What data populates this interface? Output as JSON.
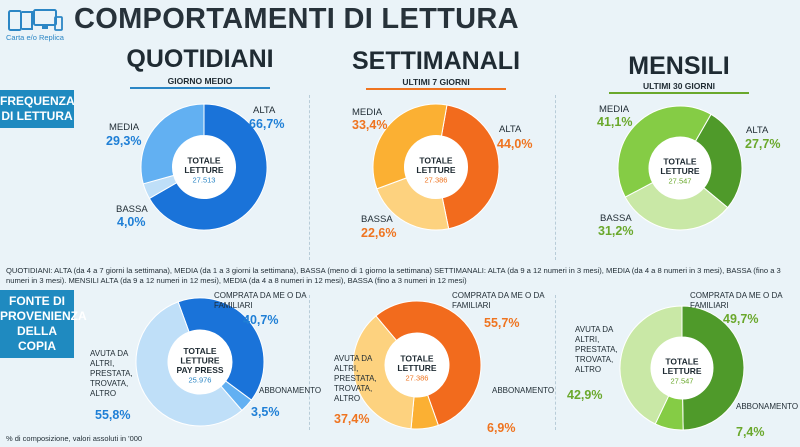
{
  "header": {
    "logo_text": "Carta e/o Replica",
    "title": "COMPORTAMENTI DI LETTURA"
  },
  "columns": [
    {
      "title": "QUOTIDIANI",
      "subtitle": "GIORNO MEDIO"
    },
    {
      "title": "SETTIMANALI",
      "subtitle": "ULTIMI 7 GIORNI"
    },
    {
      "title": "MENSILI",
      "subtitle": "ULTIMI 30 GIORNI"
    }
  ],
  "rows": {
    "frequency": "FREQUENZA DI LETTURA",
    "source": "FONTE DI PROVENIENZA DELLA COPIA"
  },
  "note": "QUOTIDIANI: ALTA (da 4 a 7 giorni la settimana), MEDIA (da 1 a 3 giorni la settimana), BASSA (meno di 1 giorno la settimana)   SETTIMANALI: ALTA (da 9 a 12 numeri in 3 mesi), MEDIA (da 4 a 8 numeri in 3 mesi), BASSA (fino a 3 numeri in 3 mesi). MENSILI ALTA (da 9 a 12 numeri in 12 mesi), MEDIA (da 4 a 8 numeri in 12 mesi), BASSA (fino a 3 numeri in 12 mesi)",
  "footnote": "% di composizione, valori assoluti in '000",
  "colors": {
    "blue_dark": "#1a73d9",
    "blue_mid": "#62b0f2",
    "blue_light": "#bfdff8",
    "orange_dark": "#f26b1d",
    "orange_mid": "#fbb033",
    "orange_light": "#fdd27f",
    "green_dark": "#4f9a2a",
    "green_mid": "#85cc45",
    "green_light": "#c9e8a6"
  },
  "chart_data": [
    {
      "type": "pie",
      "group": "QUOTIDIANI",
      "subtitle": "GIORNO MEDIO",
      "center_label": [
        "TOTALE",
        "LETTURE"
      ],
      "total": "27.513",
      "categories": [
        "ALTA",
        "MEDIA",
        "BASSA"
      ],
      "values": [
        66.7,
        29.3,
        4.0
      ],
      "value_labels": [
        "66,7%",
        "29,3%",
        "4,0%"
      ]
    },
    {
      "type": "pie",
      "group": "SETTIMANALI",
      "subtitle": "ULTIMI 7 GIORNI",
      "center_label": [
        "TOTALE",
        "LETTURE"
      ],
      "total": "27.386",
      "categories": [
        "ALTA",
        "MEDIA",
        "BASSA"
      ],
      "values": [
        44.0,
        33.4,
        22.6
      ],
      "value_labels": [
        "44,0%",
        "33,4%",
        "22,6%"
      ]
    },
    {
      "type": "pie",
      "group": "MENSILI",
      "subtitle": "ULTIMI 30 GIORNI",
      "center_label": [
        "TOTALE",
        "LETTURE"
      ],
      "total": "27.547",
      "categories": [
        "ALTA",
        "MEDIA",
        "BASSA"
      ],
      "values": [
        27.7,
        41.1,
        31.2
      ],
      "value_labels": [
        "27,7%",
        "41,1%",
        "31,2%"
      ]
    },
    {
      "type": "pie",
      "group": "QUOTIDIANI",
      "center_label": [
        "TOTALE",
        "LETTURE",
        "PAY PRESS"
      ],
      "total": "25.976",
      "categories": [
        "COMPRATA DA ME O DA FAMILIARI",
        "ABBONAMENTO",
        "AVUTA DA ALTRI, PRESTATA, TROVATA, ALTRO"
      ],
      "values": [
        40.7,
        3.5,
        55.8
      ],
      "value_labels": [
        "40,7%",
        "3,5%",
        "55,8%"
      ]
    },
    {
      "type": "pie",
      "group": "SETTIMANALI",
      "center_label": [
        "TOTALE",
        "LETTURE"
      ],
      "total": "27.386",
      "categories": [
        "COMPRATA DA ME O DA FAMILIARI",
        "ABBONAMENTO",
        "AVUTA DA ALTRI, PRESTATA, TROVATA, ALTRO"
      ],
      "values": [
        55.7,
        6.9,
        37.4
      ],
      "value_labels": [
        "55,7%",
        "6,9%",
        "37,4%"
      ]
    },
    {
      "type": "pie",
      "group": "MENSILI",
      "center_label": [
        "TOTALE",
        "LETTURE"
      ],
      "total": "27.547",
      "categories": [
        "COMPRATA DA ME O DA FAMILIARI",
        "ABBONAMENTO",
        "AVUTA DA ALTRI, PRESTATA, TROVATA, ALTRO"
      ],
      "values": [
        49.7,
        7.4,
        42.9
      ],
      "value_labels": [
        "49,7%",
        "7,4%",
        "42,9%"
      ]
    }
  ]
}
